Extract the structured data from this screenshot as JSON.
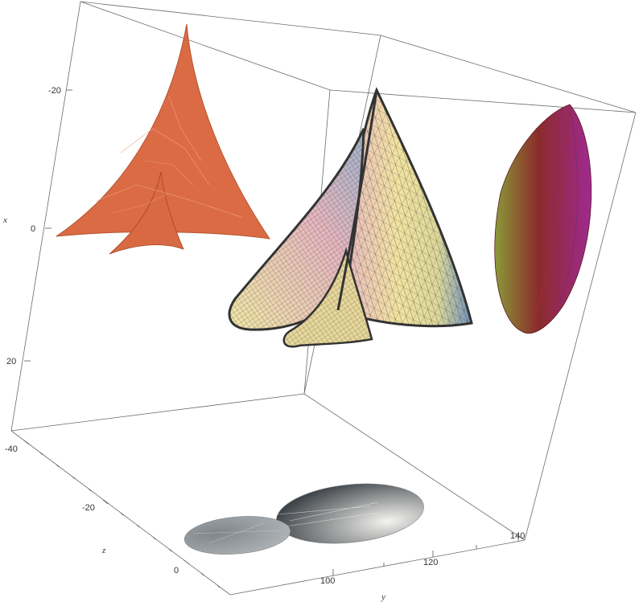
{
  "axes": {
    "x": {
      "label": "x",
      "ticks": [
        "-20",
        "0",
        "20"
      ]
    },
    "y": {
      "label": "y",
      "ticks": [
        "100",
        "120",
        "140"
      ]
    },
    "z": {
      "label": "z",
      "ticks": [
        "-40",
        "-20",
        "0"
      ]
    }
  },
  "surfaces": [
    {
      "name": "main-surface",
      "style": "mesh",
      "colors": [
        "#f4e6a2",
        "#e9b9c0",
        "#7ea1c4"
      ]
    },
    {
      "name": "x-projection",
      "color": "#d9643b"
    },
    {
      "name": "y-projection",
      "colors": [
        "#7d8a36",
        "#8e2a2a",
        "#9a2a8a"
      ]
    },
    {
      "name": "z-projection",
      "color": "#5c6268"
    }
  ]
}
